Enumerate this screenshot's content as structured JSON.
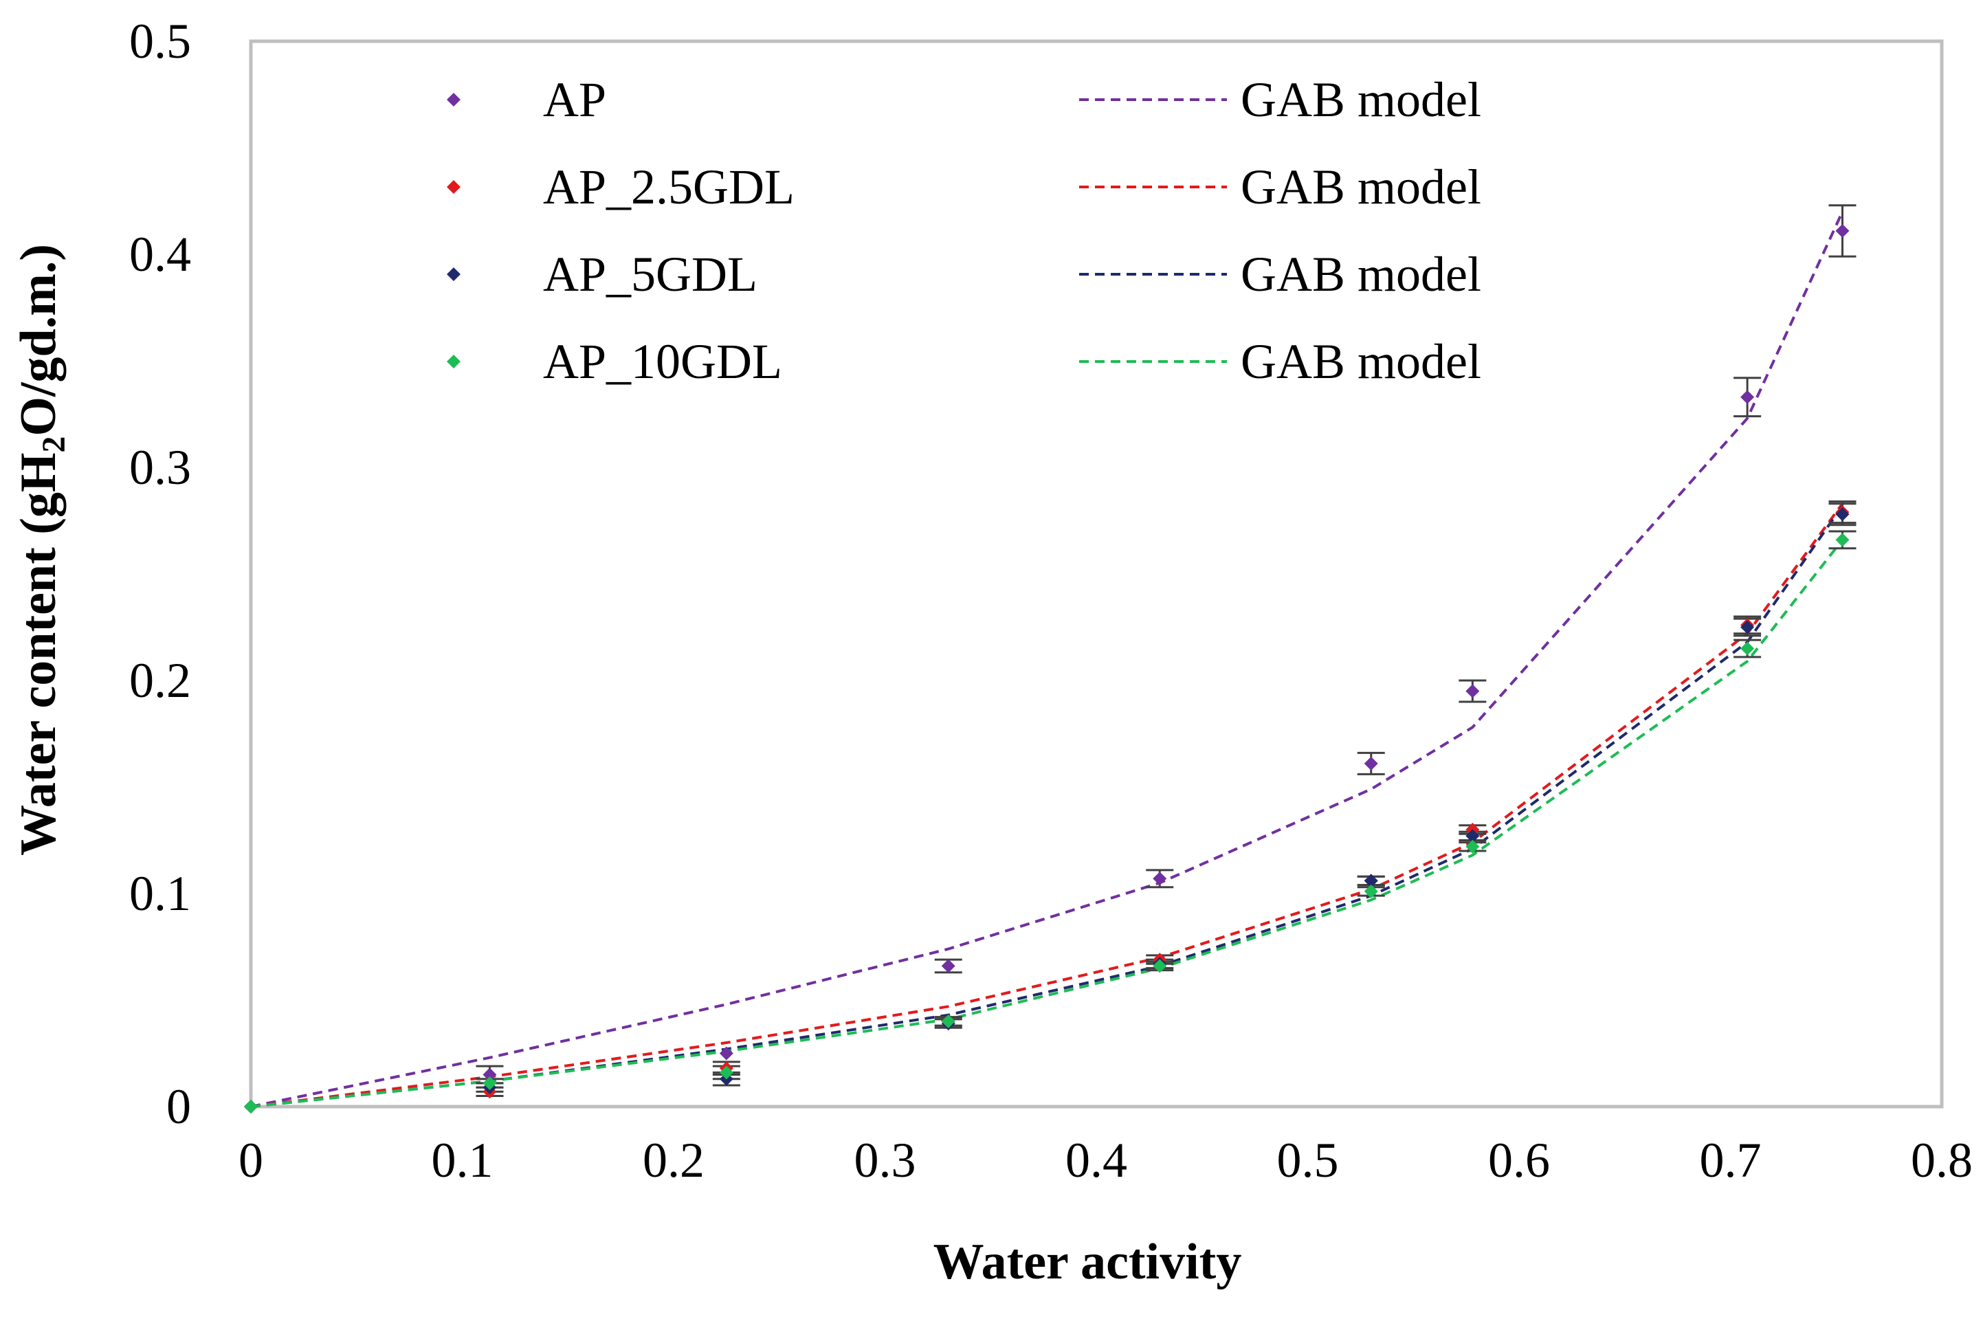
{
  "chart_data": {
    "type": "scatter",
    "title": "",
    "xlabel": "Water activity",
    "ylabel": {
      "prefix": "Water content (gH",
      "subscript": "2",
      "suffix": "O/gd.m.)"
    },
    "xlim": [
      0,
      0.8
    ],
    "ylim": [
      0,
      0.5
    ],
    "x_ticks": [
      "0",
      "0.1",
      "0.2",
      "0.3",
      "0.4",
      "0.5",
      "0.6",
      "0.7",
      "0.8"
    ],
    "y_ticks": [
      "0",
      "0.1",
      "0.2",
      "0.3",
      "0.4",
      "0.5"
    ],
    "grid": false,
    "legend_position": "top-left",
    "x": [
      0,
      0.113,
      0.225,
      0.33,
      0.43,
      0.53,
      0.578,
      0.708,
      0.753
    ],
    "series": [
      {
        "name": "AP",
        "model_name": "GAB model",
        "color": "#7030a0",
        "values": [
          0,
          0.015,
          0.025,
          0.066,
          0.107,
          0.161,
          0.195,
          0.333,
          0.411
        ],
        "errors": [
          0,
          0.004,
          0,
          0.003,
          0.004,
          0.005,
          0.005,
          0.009,
          0.012
        ],
        "model": [
          0,
          0.023,
          0.048,
          0.074,
          0.105,
          0.149,
          0.178,
          0.323,
          0.42
        ]
      },
      {
        "name": "AP_2.5GDL",
        "model_name": "GAB model",
        "color": "#e31a1c",
        "values": [
          0,
          0.007,
          0.018,
          0.04,
          0.069,
          0.106,
          0.13,
          0.226,
          0.279
        ],
        "errors": [
          0,
          0.002,
          0.003,
          0.002,
          0.002,
          0.002,
          0.002,
          0.004,
          0.005
        ],
        "model": [
          0,
          0.014,
          0.03,
          0.047,
          0.07,
          0.102,
          0.124,
          0.222,
          0.283
        ]
      },
      {
        "name": "AP_5GDL",
        "model_name": "GAB model",
        "color": "#1f2a6b",
        "values": [
          0,
          0.009,
          0.013,
          0.039,
          0.067,
          0.106,
          0.127,
          0.225,
          0.278
        ],
        "errors": [
          0,
          0.002,
          0.003,
          0.002,
          0.002,
          0.002,
          0.002,
          0.004,
          0.005
        ],
        "model": [
          0,
          0.012,
          0.027,
          0.043,
          0.066,
          0.099,
          0.121,
          0.218,
          0.282
        ]
      },
      {
        "name": "AP_10GDL",
        "model_name": "GAB model",
        "color": "#1ebc55",
        "values": [
          0,
          0.011,
          0.016,
          0.04,
          0.066,
          0.101,
          0.122,
          0.215,
          0.266
        ],
        "errors": [
          0,
          0.002,
          0.003,
          0.002,
          0.002,
          0.002,
          0.002,
          0.004,
          0.004
        ],
        "model": [
          0,
          0.012,
          0.026,
          0.041,
          0.065,
          0.097,
          0.118,
          0.209,
          0.266
        ]
      }
    ]
  }
}
